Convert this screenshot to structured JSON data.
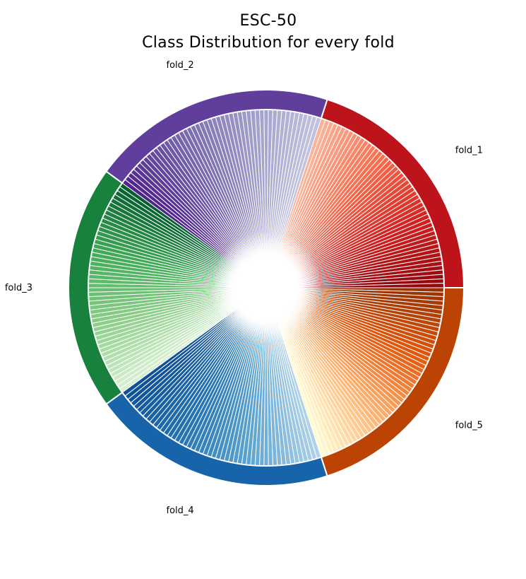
{
  "chart_data": {
    "type": "pie",
    "title": "ESC-50",
    "subtitle": "Class Distribution for every fold",
    "outer_ring": {
      "labels": [
        "fold_1",
        "fold_5",
        "fold_4",
        "fold_3",
        "fold_2"
      ],
      "values": [
        400,
        400,
        400,
        400,
        400
      ],
      "colors": [
        "#bc141a",
        "#bb4303",
        "#1764ab",
        "#17813d",
        "#5f3e9c"
      ]
    },
    "inner_ring": {
      "classes_per_fold": 50,
      "values_per_class": 8,
      "colormaps": [
        [
          "#fcb499",
          "#f96a4b",
          "#d7201f",
          "#94080f"
        ],
        [
          "#963304",
          "#e4580b",
          "#fdae6b",
          "#fffad0"
        ],
        [
          "#afd1e7",
          "#5ba3d0",
          "#2373b3",
          "#0f5096"
        ],
        [
          "#d8efd3",
          "#8bce87",
          "#41ac58",
          "#05602e"
        ],
        [
          "#50238f",
          "#7666ad",
          "#9f9bc9",
          "#c2c2de"
        ]
      ]
    }
  }
}
